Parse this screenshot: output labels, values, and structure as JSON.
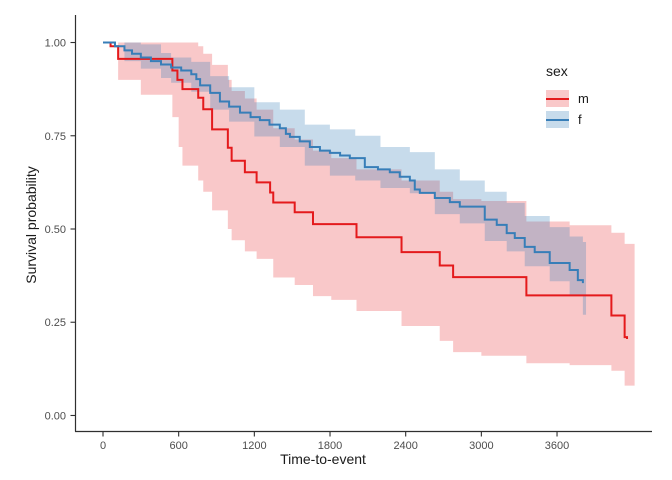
{
  "figure": {
    "y_axis_label": "Survival probability",
    "x_axis_label": "Time-to-event",
    "legend": {
      "title": "sex",
      "items": [
        {
          "label": "m",
          "line_color": "#E41A1C",
          "fill_color": "rgba(228,26,28,0.24)"
        },
        {
          "label": "f",
          "line_color": "#377EB8",
          "fill_color": "rgba(55,126,184,0.28)"
        }
      ]
    }
  },
  "chart_data": {
    "type": "line",
    "variant": "kaplan_meier_step_with_confidence_bands",
    "title": "",
    "xlabel": "Time-to-event",
    "ylabel": "Survival probability",
    "grid": false,
    "legend_position": "right",
    "legend_title": "sex",
    "x_ticks": [
      0,
      600,
      1200,
      1800,
      2400,
      3000,
      3600
    ],
    "y_tick_values": [
      0,
      0.25,
      0.5,
      0.75,
      1.0
    ],
    "y_tick_labels": [
      "0.00",
      "0.25",
      "0.50",
      "0.75",
      "1.00"
    ],
    "x_range": [
      -222,
      4353
    ],
    "y_range": [
      -0.0416,
      1.0738
    ],
    "axis_color": "#2f2f2f",
    "tick_label_color": "#4d4d4d",
    "series": [
      {
        "name": "m",
        "line_color": "#E41A1C",
        "fill_color": "rgba(228,26,28,0.24)",
        "steps": [
          [
            0,
            1.0
          ],
          [
            60,
            0.99
          ],
          [
            120,
            0.956
          ],
          [
            550,
            0.925
          ],
          [
            590,
            0.9
          ],
          [
            630,
            0.875
          ],
          [
            755,
            0.852
          ],
          [
            795,
            0.821
          ],
          [
            865,
            0.767
          ],
          [
            990,
            0.718
          ],
          [
            1020,
            0.683
          ],
          [
            1125,
            0.652
          ],
          [
            1218,
            0.625
          ],
          [
            1325,
            0.598
          ],
          [
            1350,
            0.571
          ],
          [
            1520,
            0.545
          ],
          [
            1665,
            0.513
          ],
          [
            2010,
            0.478
          ],
          [
            2367,
            0.438
          ],
          [
            2670,
            0.402
          ],
          [
            2776,
            0.371
          ],
          [
            3357,
            0.322
          ],
          [
            4031,
            0.268
          ],
          [
            4136,
            0.21
          ],
          [
            4155,
            0.205
          ]
        ],
        "ci": [
          [
            0,
            1,
            1
          ],
          [
            120,
            0.9,
            1
          ],
          [
            300,
            0.86,
            1
          ],
          [
            550,
            0.8,
            1
          ],
          [
            600,
            0.72,
            1
          ],
          [
            630,
            0.67,
            1
          ],
          [
            755,
            0.63,
            0.99
          ],
          [
            795,
            0.6,
            0.97
          ],
          [
            865,
            0.55,
            0.94
          ],
          [
            990,
            0.5,
            0.9
          ],
          [
            1020,
            0.47,
            0.87
          ],
          [
            1125,
            0.44,
            0.85
          ],
          [
            1218,
            0.42,
            0.82
          ],
          [
            1350,
            0.37,
            0.77
          ],
          [
            1520,
            0.35,
            0.74
          ],
          [
            1665,
            0.32,
            0.71
          ],
          [
            1810,
            0.31,
            0.69
          ],
          [
            2010,
            0.28,
            0.66
          ],
          [
            2367,
            0.24,
            0.63
          ],
          [
            2670,
            0.2,
            0.6
          ],
          [
            2776,
            0.17,
            0.58
          ],
          [
            3000,
            0.16,
            0.575
          ],
          [
            3357,
            0.14,
            0.52
          ],
          [
            3700,
            0.135,
            0.51
          ],
          [
            4031,
            0.12,
            0.49
          ],
          [
            4136,
            0.08,
            0.46
          ],
          [
            4215,
            0.08,
            0.46
          ]
        ]
      },
      {
        "name": "f",
        "line_color": "#377EB8",
        "fill_color": "rgba(55,126,184,0.28)",
        "steps": [
          [
            0,
            1.0
          ],
          [
            95,
            0.99
          ],
          [
            170,
            0.979
          ],
          [
            230,
            0.97
          ],
          [
            300,
            0.96
          ],
          [
            380,
            0.95
          ],
          [
            460,
            0.941
          ],
          [
            540,
            0.933
          ],
          [
            620,
            0.925
          ],
          [
            700,
            0.915
          ],
          [
            740,
            0.902
          ],
          [
            770,
            0.885
          ],
          [
            850,
            0.865
          ],
          [
            927,
            0.842
          ],
          [
            1000,
            0.828
          ],
          [
            1086,
            0.812
          ],
          [
            1170,
            0.8
          ],
          [
            1244,
            0.792
          ],
          [
            1320,
            0.78
          ],
          [
            1402,
            0.77
          ],
          [
            1450,
            0.755
          ],
          [
            1482,
            0.747
          ],
          [
            1560,
            0.735
          ],
          [
            1640,
            0.72
          ],
          [
            1720,
            0.71
          ],
          [
            1799,
            0.704
          ],
          [
            1880,
            0.697
          ],
          [
            1957,
            0.69
          ],
          [
            2076,
            0.666
          ],
          [
            2180,
            0.66
          ],
          [
            2274,
            0.652
          ],
          [
            2353,
            0.64
          ],
          [
            2433,
            0.63
          ],
          [
            2472,
            0.606
          ],
          [
            2512,
            0.597
          ],
          [
            2631,
            0.583
          ],
          [
            2750,
            0.572
          ],
          [
            2829,
            0.56
          ],
          [
            3027,
            0.525
          ],
          [
            3122,
            0.511
          ],
          [
            3201,
            0.489
          ],
          [
            3265,
            0.476
          ],
          [
            3344,
            0.452
          ],
          [
            3423,
            0.438
          ],
          [
            3542,
            0.409
          ],
          [
            3700,
            0.39
          ],
          [
            3765,
            0.363
          ],
          [
            3805,
            0.355
          ]
        ],
        "ci": [
          [
            0,
            1,
            1
          ],
          [
            170,
            0.95,
            1
          ],
          [
            300,
            0.93,
            0.995
          ],
          [
            460,
            0.905,
            0.972
          ],
          [
            540,
            0.892,
            0.96
          ],
          [
            700,
            0.868,
            0.948
          ],
          [
            850,
            0.82,
            0.91
          ],
          [
            1000,
            0.788,
            0.88
          ],
          [
            1200,
            0.748,
            0.84
          ],
          [
            1402,
            0.72,
            0.82
          ],
          [
            1600,
            0.67,
            0.78
          ],
          [
            1799,
            0.643,
            0.767
          ],
          [
            2000,
            0.63,
            0.75
          ],
          [
            2200,
            0.61,
            0.72
          ],
          [
            2433,
            0.596,
            0.706
          ],
          [
            2631,
            0.54,
            0.66
          ],
          [
            2829,
            0.515,
            0.63
          ],
          [
            3027,
            0.468,
            0.6
          ],
          [
            3201,
            0.44,
            0.57
          ],
          [
            3344,
            0.4,
            0.535
          ],
          [
            3542,
            0.36,
            0.505
          ],
          [
            3700,
            0.32,
            0.48
          ],
          [
            3805,
            0.27,
            0.465
          ],
          [
            3830,
            0.27,
            0.465
          ]
        ]
      }
    ]
  }
}
